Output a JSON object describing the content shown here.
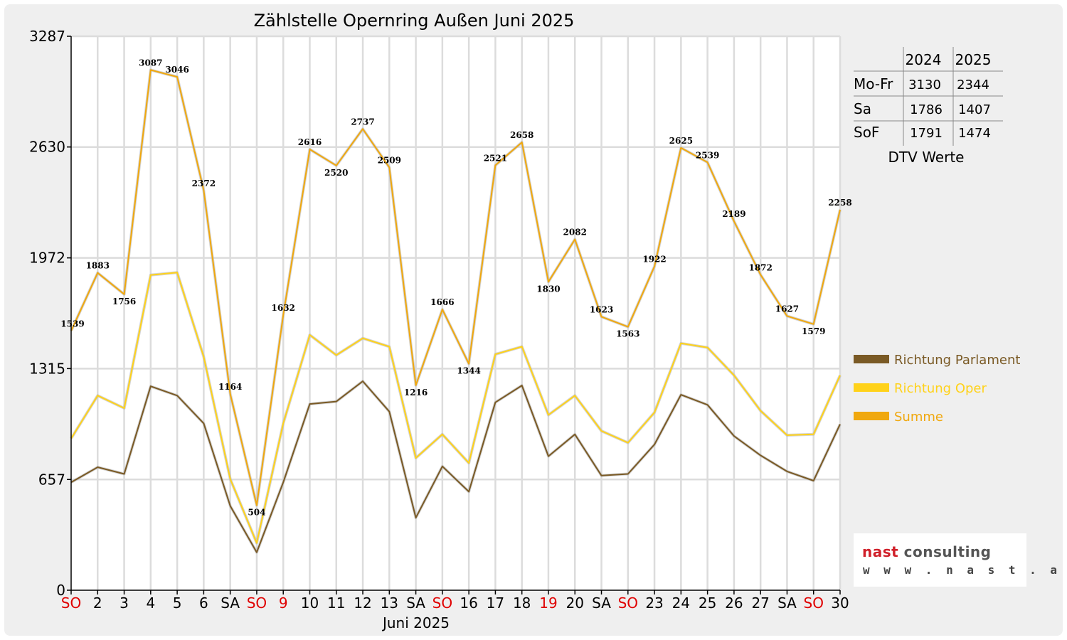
{
  "colors": {
    "parlament": "#7a5a25",
    "oper": "#ffd21a",
    "summe": "#f0a80e",
    "weekend_red": "#e00000",
    "grid": "#dcdcdc",
    "frame": "#efefef"
  },
  "logo": {
    "brand1": "nast",
    "brand2": "consulting",
    "url": "w w w . n a s t . a t"
  },
  "dtv_table": {
    "headers": [
      "",
      "2024",
      "2025"
    ],
    "rows": [
      {
        "label": "Mo-Fr",
        "v2024": "3130",
        "v2025": "2344"
      },
      {
        "label": "Sa",
        "v2024": "1786",
        "v2025": "1407"
      },
      {
        "label": "SoF",
        "v2024": "1791",
        "v2025": "1474"
      }
    ],
    "caption": "DTV Werte"
  },
  "chart_data": {
    "type": "line",
    "title": "Zählstelle Opernring Außen Juni 2025",
    "xlabel": "Juni 2025",
    "ylabel": "",
    "ylim": [
      0,
      3287
    ],
    "yticks": [
      0,
      657,
      1315,
      1972,
      2630,
      3287
    ],
    "grid": true,
    "legend_position": "right",
    "categories": [
      "SO",
      "2",
      "3",
      "4",
      "5",
      "6",
      "SA",
      "SO",
      "9",
      "10",
      "11",
      "12",
      "13",
      "SA",
      "SO",
      "16",
      "17",
      "18",
      "19",
      "20",
      "SA",
      "SO",
      "23",
      "24",
      "25",
      "26",
      "27",
      "SA",
      "SO",
      "30"
    ],
    "red_categories": [
      0,
      7,
      8,
      14,
      18,
      21,
      28
    ],
    "series": [
      {
        "name": "Richtung Parlament",
        "color": "#7a5a25",
        "values": [
          640,
          730,
          690,
          1210,
          1155,
          990,
          500,
          225,
          640,
          1105,
          1120,
          1240,
          1060,
          430,
          735,
          585,
          1115,
          1215,
          795,
          925,
          680,
          690,
          865,
          1160,
          1100,
          915,
          800,
          705,
          650,
          985
        ]
      },
      {
        "name": "Richtung Oper",
        "color": "#ffd21a",
        "values": [
          900,
          1155,
          1080,
          1870,
          1885,
          1385,
          660,
          280,
          990,
          1515,
          1395,
          1495,
          1445,
          785,
          925,
          755,
          1400,
          1445,
          1040,
          1155,
          945,
          875,
          1055,
          1465,
          1440,
          1275,
          1065,
          920,
          925,
          1275
        ]
      },
      {
        "name": "Summe",
        "color": "#f0a80e",
        "values": [
          1539,
          1883,
          1756,
          3087,
          3046,
          2372,
          1164,
          504,
          1632,
          2616,
          2520,
          2737,
          2509,
          1216,
          1666,
          1344,
          2521,
          2658,
          1830,
          2082,
          1623,
          1563,
          1922,
          2625,
          2539,
          2189,
          1872,
          1627,
          1579,
          2258
        ],
        "data_labels": [
          "1539",
          "1883",
          "1756",
          "3087",
          "3046",
          "2372",
          "1164",
          "504",
          "1632",
          "2616",
          "2520",
          "2737",
          "2509",
          "1216",
          "1666",
          "1344",
          "2521",
          "2658",
          "1830",
          "2082",
          "1623",
          "1563",
          "1922",
          "2625",
          "2539",
          "2189",
          "1872",
          "1627",
          "1579",
          "2258"
        ]
      }
    ]
  }
}
